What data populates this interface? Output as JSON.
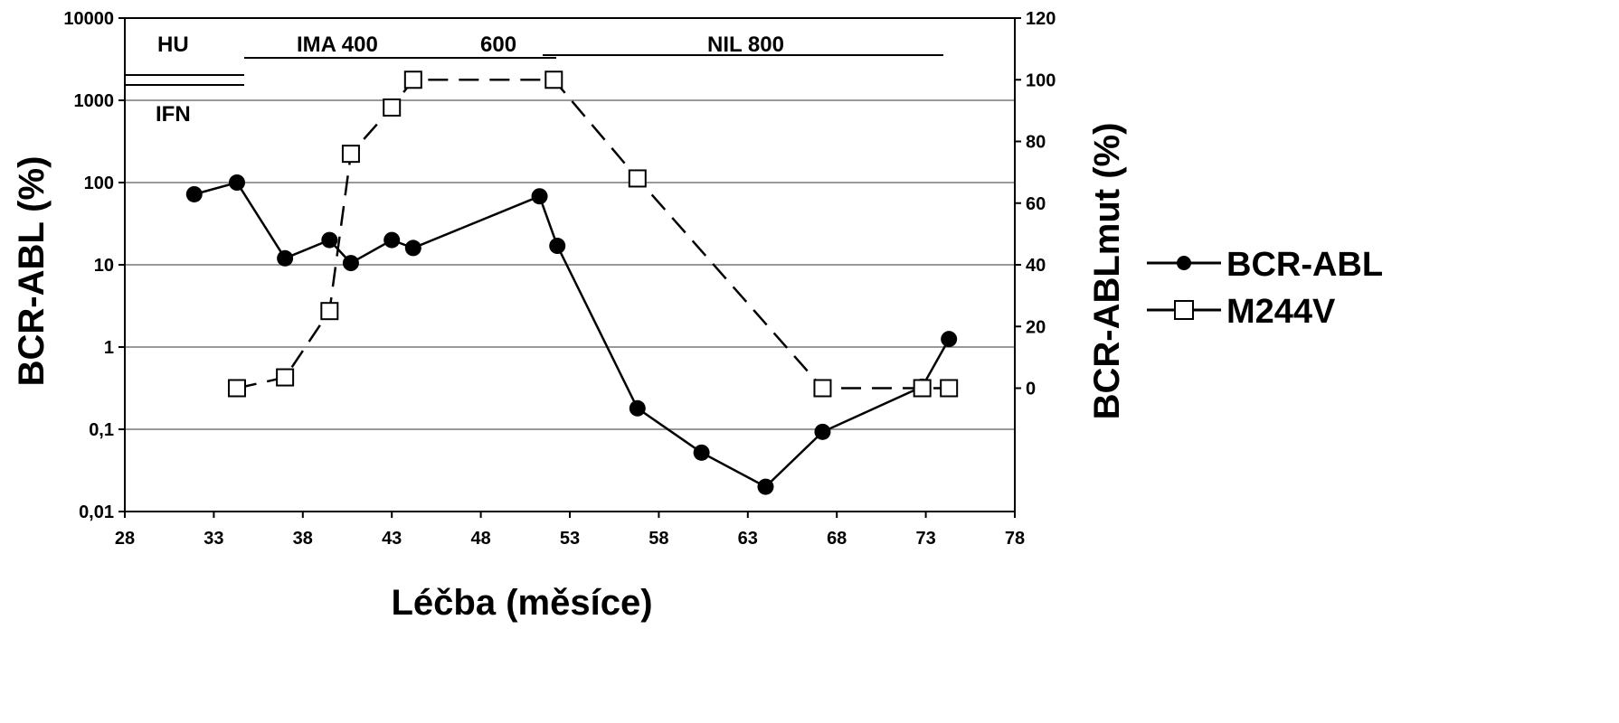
{
  "chart_data": {
    "type": "line",
    "xlabel": "Léčba (měsíce)",
    "ylabel": "BCR-ABL (%)",
    "y2label": "BCR-ABLmut (%)",
    "x_ticks": [
      28,
      33,
      38,
      43,
      48,
      53,
      58,
      63,
      68,
      73,
      78
    ],
    "xlim": [
      28,
      78
    ],
    "y_scale": "log",
    "ylim": [
      0.01,
      10000
    ],
    "y_ticks": [
      0.01,
      0.1,
      1,
      10,
      100,
      1000,
      10000
    ],
    "y_tick_labels": [
      "0,01",
      "0,1",
      "1",
      "10",
      "100",
      "1000",
      "10000"
    ],
    "y2lim": [
      -40,
      120
    ],
    "y2_ticks": [
      0,
      20,
      40,
      60,
      80,
      100,
      120
    ],
    "y2_tick_labels": [
      "0",
      "20",
      "40",
      "60",
      "80",
      "100",
      "120"
    ],
    "grid": "horizontal",
    "legend_position": "right",
    "series": [
      {
        "name": "BCR-ABL",
        "axis": "left",
        "marker": "filled-circle",
        "line": "solid",
        "x": [
          31.9,
          34.3,
          37.0,
          39.5,
          40.7,
          43.0,
          44.2,
          51.3,
          52.3,
          56.8,
          60.4,
          64.0,
          67.2,
          72.8,
          74.3
        ],
        "y": [
          72,
          100,
          12,
          20,
          10.5,
          20,
          16,
          68,
          17,
          0.18,
          0.052,
          0.02,
          0.093,
          0.33,
          1.25
        ]
      },
      {
        "name": "M244V",
        "axis": "right",
        "marker": "open-square",
        "line": "dashed",
        "x": [
          34.3,
          37.0,
          39.5,
          40.7,
          43.0,
          44.2,
          52.1,
          56.8,
          67.2,
          72.8,
          74.3
        ],
        "y": [
          0,
          3.5,
          25,
          76,
          91,
          100,
          100,
          68,
          0,
          0,
          0
        ]
      }
    ],
    "annotations": [
      "HU",
      "IFN",
      "IMA 400",
      "600",
      "NIL 800"
    ],
    "colors": {
      "line": "#000000",
      "grid": "#999999",
      "background": "#ffffff"
    }
  }
}
